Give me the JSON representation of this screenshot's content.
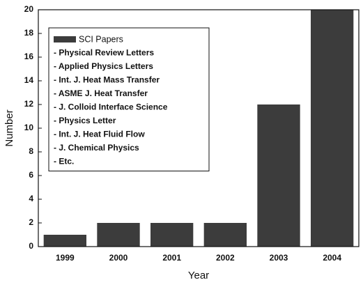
{
  "chart_data": {
    "type": "bar",
    "x_label": "Year",
    "y_label": "Number",
    "categories": [
      "1999",
      "2000",
      "2001",
      "2002",
      "2003",
      "2004"
    ],
    "series": [
      {
        "name": "SCI Papers",
        "color": "#3c3c3c",
        "values": [
          1,
          2,
          2,
          2,
          12,
          20
        ]
      }
    ],
    "annotations": [
      "- Physical Review Letters",
      "- Applied Physics Letters",
      "- Int. J. Heat Mass Transfer",
      "- ASME J. Heat Transfer",
      "- J. Colloid Interface Science",
      "- Physics Letter",
      "- Int. J. Heat Fluid Flow",
      "- J. Chemical Physics",
      "- Etc."
    ],
    "ylim": [
      0,
      20
    ],
    "yticks": [
      0,
      2,
      4,
      6,
      8,
      10,
      12,
      14,
      16,
      18,
      20
    ],
    "grid": false,
    "legend": "upper left"
  }
}
